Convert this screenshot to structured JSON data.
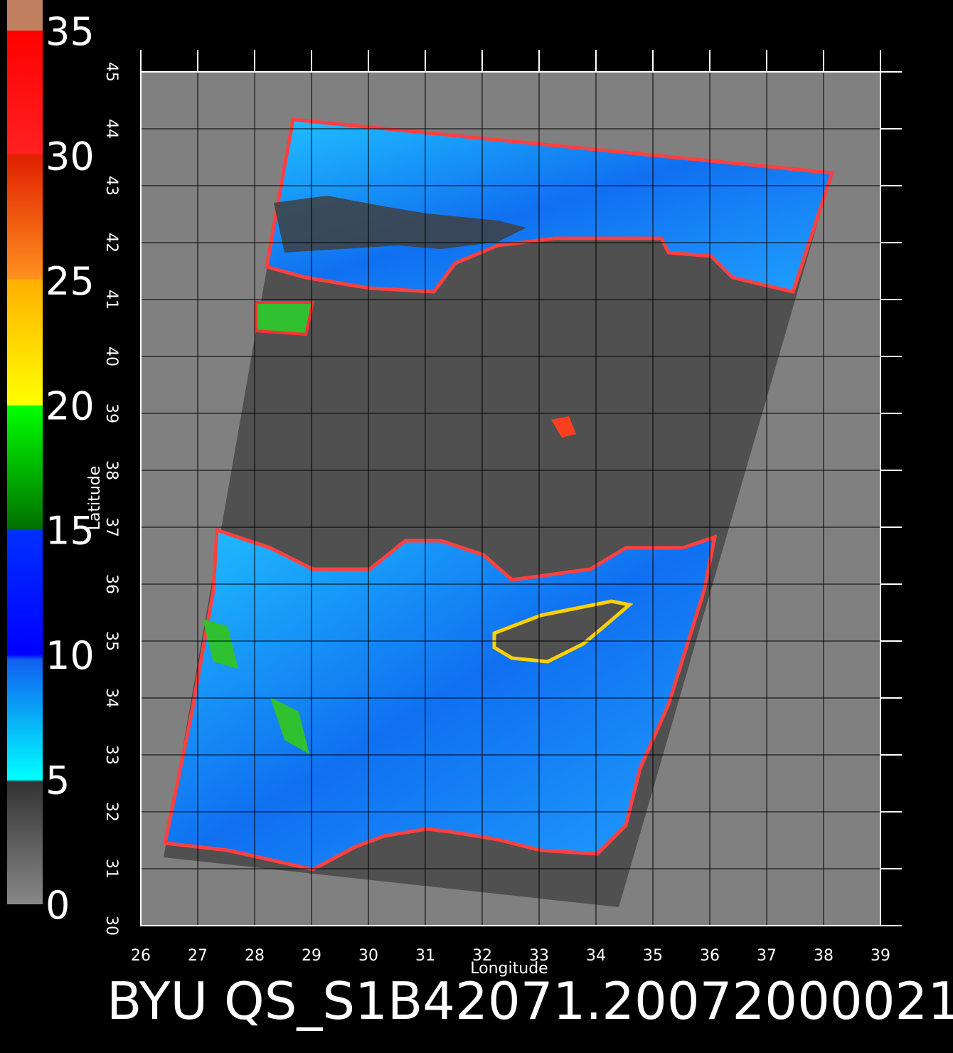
{
  "map": {
    "xlabel": "Longitude",
    "ylabel": "Latitude",
    "xlim": [
      26,
      39
    ],
    "ylim": [
      30,
      45
    ],
    "xticks": [
      26,
      27,
      28,
      29,
      30,
      31,
      32,
      33,
      34,
      35,
      36,
      37,
      38,
      39
    ],
    "yticks": [
      30,
      31,
      32,
      33,
      34,
      35,
      36,
      37,
      38,
      39,
      40,
      41,
      42,
      43,
      44,
      45
    ]
  },
  "colorbar": {
    "range": [
      0,
      35
    ],
    "ticks": [
      0,
      5,
      10,
      15,
      20,
      25,
      30,
      35
    ]
  },
  "title": "BYU QS_S1B42071.20072000021"
}
